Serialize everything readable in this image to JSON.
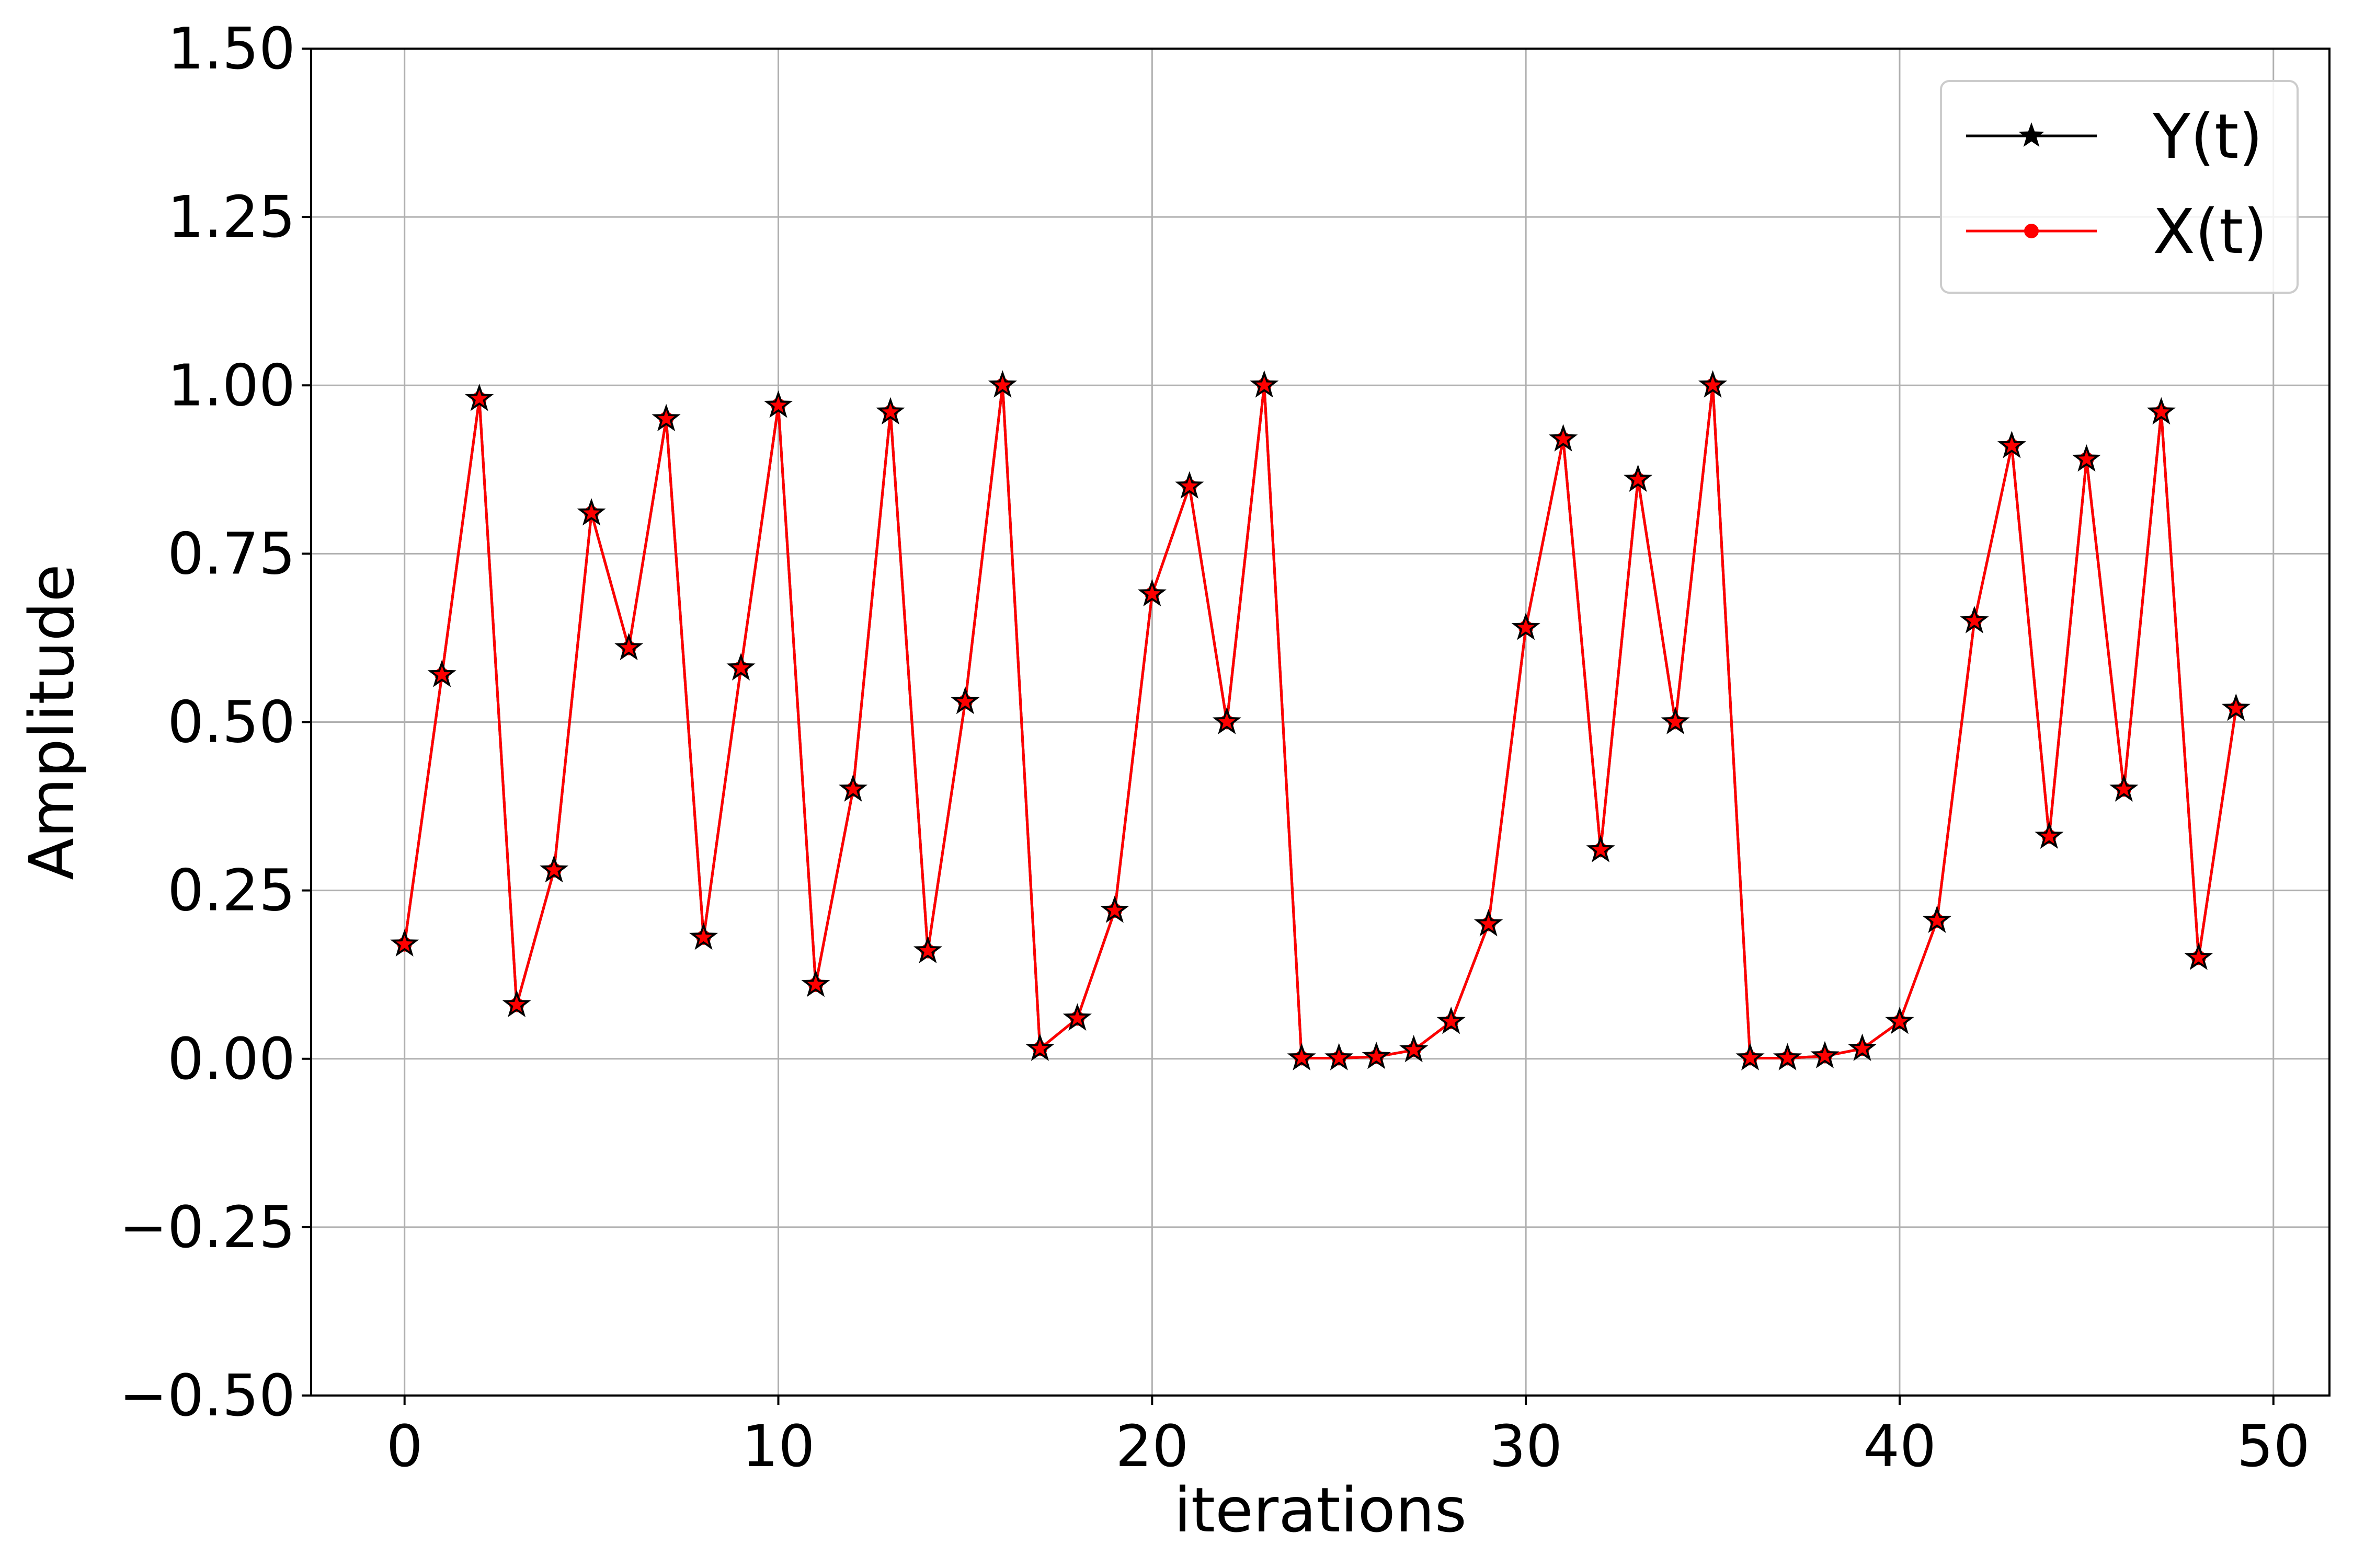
{
  "chart_data": {
    "type": "line",
    "xlabel": "iterations",
    "ylabel": "Amplitude",
    "xlim": [
      -2.5,
      51.5
    ],
    "ylim": [
      -0.5,
      1.5
    ],
    "xticks": [
      0,
      10,
      20,
      30,
      40,
      50
    ],
    "xtick_labels": [
      "0",
      "10",
      "20",
      "30",
      "40",
      "50"
    ],
    "yticks": [
      -0.5,
      -0.25,
      0.0,
      0.25,
      0.5,
      0.75,
      1.0,
      1.25,
      1.5
    ],
    "ytick_labels": [
      "−0.50",
      "−0.25",
      "0.00",
      "0.25",
      "0.50",
      "0.75",
      "1.00",
      "1.25",
      "1.50"
    ],
    "grid": true,
    "legend_position": "top-right",
    "x": [
      0,
      1,
      2,
      3,
      4,
      5,
      6,
      7,
      8,
      9,
      10,
      11,
      12,
      13,
      14,
      15,
      16,
      17,
      18,
      19,
      20,
      21,
      22,
      23,
      24,
      25,
      26,
      27,
      28,
      29,
      30,
      31,
      32,
      33,
      34,
      35,
      36,
      37,
      38,
      39,
      40,
      41,
      42,
      43,
      44,
      45,
      46,
      47,
      48,
      49
    ],
    "series": [
      {
        "name": "Y(t)",
        "color": "#000000",
        "marker": "star",
        "values": [
          0.17,
          0.57,
          0.98,
          0.08,
          0.28,
          0.81,
          0.61,
          0.95,
          0.18,
          0.58,
          0.97,
          0.11,
          0.4,
          0.96,
          0.16,
          0.53,
          1.0,
          0.015,
          0.06,
          0.22,
          0.69,
          0.85,
          0.5,
          1.0,
          0.001,
          0.001,
          0.003,
          0.013,
          0.055,
          0.2,
          0.64,
          0.92,
          0.31,
          0.86,
          0.5,
          1.0,
          0.001,
          0.001,
          0.004,
          0.015,
          0.055,
          0.205,
          0.65,
          0.91,
          0.33,
          0.89,
          0.4,
          0.96,
          0.15,
          0.52
        ]
      },
      {
        "name": "X(t)",
        "color": "#ff0000",
        "marker": "circle",
        "values": [
          0.17,
          0.57,
          0.98,
          0.08,
          0.28,
          0.81,
          0.61,
          0.95,
          0.18,
          0.58,
          0.97,
          0.11,
          0.4,
          0.96,
          0.16,
          0.53,
          1.0,
          0.015,
          0.06,
          0.22,
          0.69,
          0.85,
          0.5,
          1.0,
          0.001,
          0.001,
          0.003,
          0.013,
          0.055,
          0.2,
          0.64,
          0.92,
          0.31,
          0.86,
          0.5,
          1.0,
          0.001,
          0.001,
          0.004,
          0.015,
          0.055,
          0.205,
          0.65,
          0.91,
          0.33,
          0.89,
          0.4,
          0.96,
          0.15,
          0.52
        ]
      }
    ]
  }
}
